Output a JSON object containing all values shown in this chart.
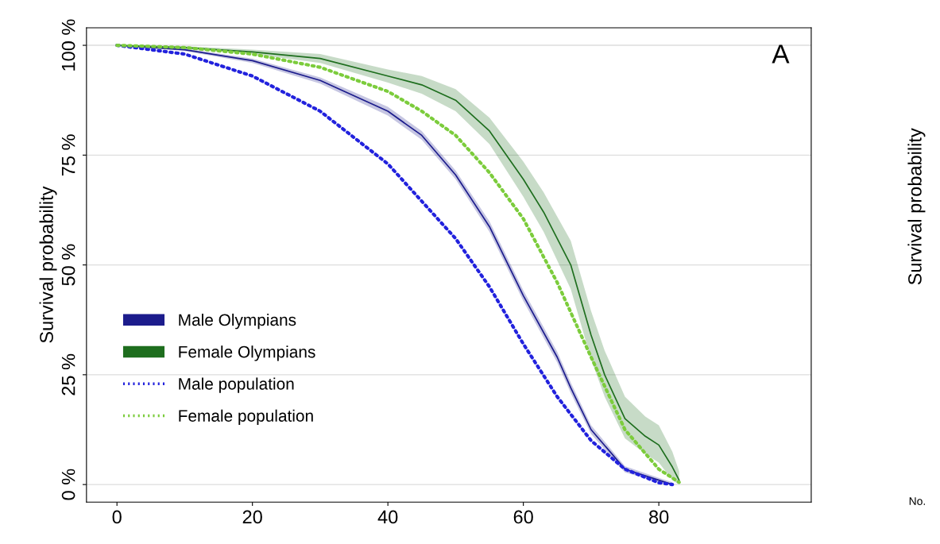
{
  "chart_data": {
    "type": "line",
    "ylabel": "Survival probability",
    "annotations": [
      "A",
      "Survival probability",
      "No."
    ],
    "xlim": [
      -4.5,
      102.5
    ],
    "xticks": [
      0,
      20,
      40,
      60,
      80
    ],
    "ylim": [
      -4,
      104
    ],
    "yticks": [
      {
        "value": 0,
        "label": "0 %"
      },
      {
        "value": 25,
        "label": "25 %"
      },
      {
        "value": 50,
        "label": "50 %"
      },
      {
        "value": 75,
        "label": "75 %"
      },
      {
        "value": 100,
        "label": "100 %"
      }
    ],
    "grid": "y",
    "legend": "left",
    "series": [
      {
        "name": "Male Olympians",
        "color": "#1c1c8c",
        "line_style": "solid",
        "x": [
          0,
          10,
          20,
          30,
          40,
          45,
          50,
          55,
          60,
          65,
          67,
          70,
          75,
          80,
          82
        ],
        "values": [
          100,
          99,
          96.5,
          92,
          85,
          79.5,
          70.5,
          58.7,
          43,
          29,
          22,
          12.5,
          3.5,
          1,
          0
        ],
        "lower": [
          100,
          98.7,
          96,
          91.3,
          84,
          78.5,
          69.5,
          57.5,
          41.8,
          27.8,
          20.8,
          11.5,
          2.8,
          0.5,
          0
        ],
        "upper": [
          100,
          99.3,
          97,
          92.7,
          86,
          80.5,
          71.5,
          59.9,
          44.2,
          30.2,
          23.2,
          13.5,
          4.2,
          1.5,
          0.5
        ]
      },
      {
        "name": "Female Olympians",
        "color": "#1e6e1e",
        "line_style": "solid",
        "x": [
          0,
          10,
          20,
          30,
          40,
          45,
          50,
          55,
          60,
          63,
          65,
          67,
          70,
          72,
          75,
          78,
          80,
          82,
          83
        ],
        "values": [
          100,
          99.5,
          98.5,
          97,
          93,
          91,
          87.5,
          80.5,
          69.5,
          62,
          56,
          50,
          34,
          25,
          15,
          11,
          9,
          4,
          1
        ],
        "lower": [
          100,
          99.2,
          98,
          96,
          91.5,
          89,
          85,
          77.5,
          65.5,
          57.5,
          51,
          44.5,
          28.5,
          20,
          10.5,
          7,
          5,
          1,
          0
        ],
        "upper": [
          100,
          99.8,
          99,
          98,
          94.5,
          93,
          90,
          83.5,
          73.5,
          66.5,
          61,
          55.5,
          39.5,
          30.5,
          20,
          15.5,
          13.5,
          7.5,
          3
        ]
      },
      {
        "name": "Male population",
        "color": "#2222dd",
        "line_style": "dotted",
        "x": [
          0,
          10,
          20,
          30,
          40,
          50,
          55,
          60,
          65,
          70,
          75,
          80,
          82
        ],
        "values": [
          100,
          98,
          93,
          85,
          73,
          56,
          45,
          32,
          20,
          10,
          3.5,
          0.4,
          0
        ]
      },
      {
        "name": "Female population",
        "color": "#7ccc3c",
        "line_style": "dotted",
        "x": [
          0,
          10,
          20,
          30,
          40,
          45,
          50,
          55,
          60,
          65,
          70,
          75,
          80,
          83
        ],
        "values": [
          100,
          99.5,
          98,
          95,
          89.5,
          85,
          79.5,
          71,
          60.5,
          46,
          29,
          12.5,
          3.5,
          0.5
        ]
      }
    ]
  }
}
